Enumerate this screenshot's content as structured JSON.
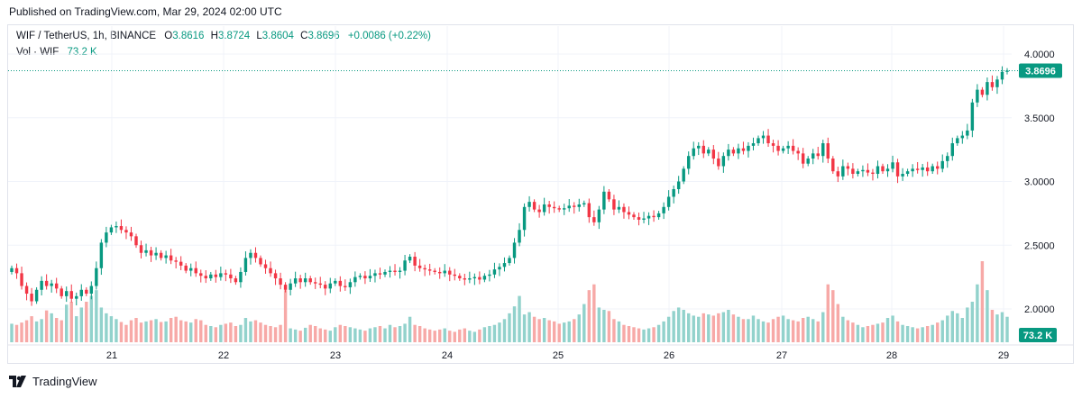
{
  "header": {
    "published": "Published on TradingView.com, Mar 29, 2024 02:00 UTC"
  },
  "legend": {
    "symbol": "WIF / TetherUS, 1h, BINANCE",
    "open_label": "O",
    "open": "3.8616",
    "high_label": "H",
    "high": "3.8724",
    "low_label": "L",
    "low": "3.8604",
    "close_label": "C",
    "close": "3.8696",
    "change": "+0.0086 (+0.22%)",
    "vol_label": "Vol · WIF",
    "vol_value": "73.2 K"
  },
  "price_badge": "3.8696",
  "volume_badge": "73.2 K",
  "footer": {
    "brand": "TradingView"
  },
  "colors": {
    "up": "#089981",
    "down": "#f23645",
    "up_volume": "#92d2cc",
    "down_volume": "#f7a9a7",
    "badge": "#089981"
  },
  "chart_data": {
    "type": "candlestick",
    "y_ticks": [
      "4.0000",
      "3.5000",
      "3.0000",
      "2.5000",
      "2.0000"
    ],
    "ylim": [
      1.87,
      4.1
    ],
    "x_tick_labels": [
      "21",
      "22",
      "23",
      "24",
      "25",
      "26",
      "27",
      "28",
      "29"
    ],
    "last_price": 3.8696,
    "grid": true,
    "close_series": [
      2.32,
      2.28,
      2.18,
      2.12,
      2.06,
      2.15,
      2.22,
      2.18,
      2.2,
      2.16,
      2.1,
      2.14,
      2.08,
      2.1,
      2.15,
      2.12,
      2.18,
      2.32,
      2.52,
      2.6,
      2.64,
      2.65,
      2.62,
      2.6,
      2.57,
      2.5,
      2.44,
      2.46,
      2.42,
      2.44,
      2.4,
      2.42,
      2.38,
      2.37,
      2.34,
      2.3,
      2.32,
      2.28,
      2.26,
      2.24,
      2.27,
      2.25,
      2.28,
      2.27,
      2.24,
      2.21,
      2.29,
      2.4,
      2.44,
      2.4,
      2.35,
      2.32,
      2.28,
      2.24,
      2.19,
      2.15,
      2.2,
      2.24,
      2.21,
      2.24,
      2.21,
      2.2,
      2.19,
      2.16,
      2.2,
      2.22,
      2.18,
      2.17,
      2.21,
      2.25,
      2.26,
      2.24,
      2.26,
      2.28,
      2.27,
      2.29,
      2.3,
      2.29,
      2.3,
      2.38,
      2.41,
      2.34,
      2.32,
      2.31,
      2.3,
      2.29,
      2.28,
      2.3,
      2.27,
      2.26,
      2.24,
      2.23,
      2.24,
      2.25,
      2.23,
      2.26,
      2.27,
      2.31,
      2.33,
      2.36,
      2.4,
      2.52,
      2.62,
      2.8,
      2.84,
      2.78,
      2.76,
      2.82,
      2.8,
      2.79,
      2.78,
      2.79,
      2.81,
      2.8,
      2.82,
      2.83,
      2.72,
      2.68,
      2.78,
      2.92,
      2.86,
      2.78,
      2.8,
      2.76,
      2.74,
      2.72,
      2.7,
      2.71,
      2.73,
      2.72,
      2.75,
      2.8,
      2.88,
      2.94,
      3.0,
      3.1,
      3.2,
      3.26,
      3.28,
      3.22,
      3.25,
      3.18,
      3.12,
      3.2,
      3.25,
      3.22,
      3.26,
      3.24,
      3.28,
      3.3,
      3.34,
      3.36,
      3.3,
      3.28,
      3.24,
      3.26,
      3.28,
      3.24,
      3.22,
      3.14,
      3.18,
      3.22,
      3.2,
      3.3,
      3.18,
      3.08,
      3.04,
      3.12,
      3.1,
      3.06,
      3.08,
      3.09,
      3.07,
      3.06,
      3.12,
      3.08,
      3.1,
      3.15,
      3.04,
      3.06,
      3.08,
      3.1,
      3.09,
      3.11,
      3.08,
      3.12,
      3.1,
      3.16,
      3.2,
      3.3,
      3.34,
      3.36,
      3.4,
      3.62,
      3.72,
      3.68,
      3.78,
      3.74,
      3.8,
      3.86,
      3.87
    ],
    "volume_series": [
      32,
      30,
      34,
      38,
      45,
      36,
      40,
      55,
      50,
      42,
      38,
      65,
      70,
      45,
      60,
      70,
      80,
      90,
      60,
      50,
      45,
      40,
      35,
      30,
      38,
      42,
      34,
      36,
      38,
      40,
      35,
      36,
      42,
      44,
      38,
      36,
      34,
      40,
      38,
      30,
      28,
      26,
      30,
      32,
      34,
      28,
      30,
      42,
      36,
      38,
      34,
      30,
      28,
      26,
      30,
      90,
      24,
      22,
      20,
      25,
      30,
      28,
      24,
      22,
      20,
      26,
      30,
      28,
      26,
      24,
      22,
      20,
      24,
      26,
      28,
      24,
      30,
      26,
      28,
      32,
      44,
      30,
      28,
      24,
      22,
      20,
      22,
      24,
      20,
      18,
      22,
      24,
      20,
      18,
      22,
      26,
      28,
      30,
      34,
      40,
      50,
      62,
      80,
      48,
      52,
      44,
      40,
      42,
      38,
      36,
      32,
      34,
      36,
      40,
      48,
      66,
      90,
      100,
      60,
      56,
      54,
      40,
      36,
      30,
      28,
      26,
      24,
      22,
      24,
      26,
      30,
      36,
      44,
      54,
      60,
      56,
      50,
      46,
      44,
      50,
      48,
      46,
      50,
      52,
      56,
      48,
      44,
      40,
      40,
      46,
      40,
      36,
      34,
      40,
      44,
      46,
      40,
      38,
      36,
      42,
      44,
      40,
      36,
      52,
      100,
      90,
      66,
      44,
      38,
      34,
      30,
      26,
      28,
      30,
      32,
      34,
      42,
      46,
      36,
      30,
      28,
      26,
      24,
      26,
      28,
      30,
      34,
      38,
      46,
      54,
      50,
      42,
      60,
      70,
      100,
      140,
      90,
      56,
      48,
      52,
      44
    ]
  }
}
